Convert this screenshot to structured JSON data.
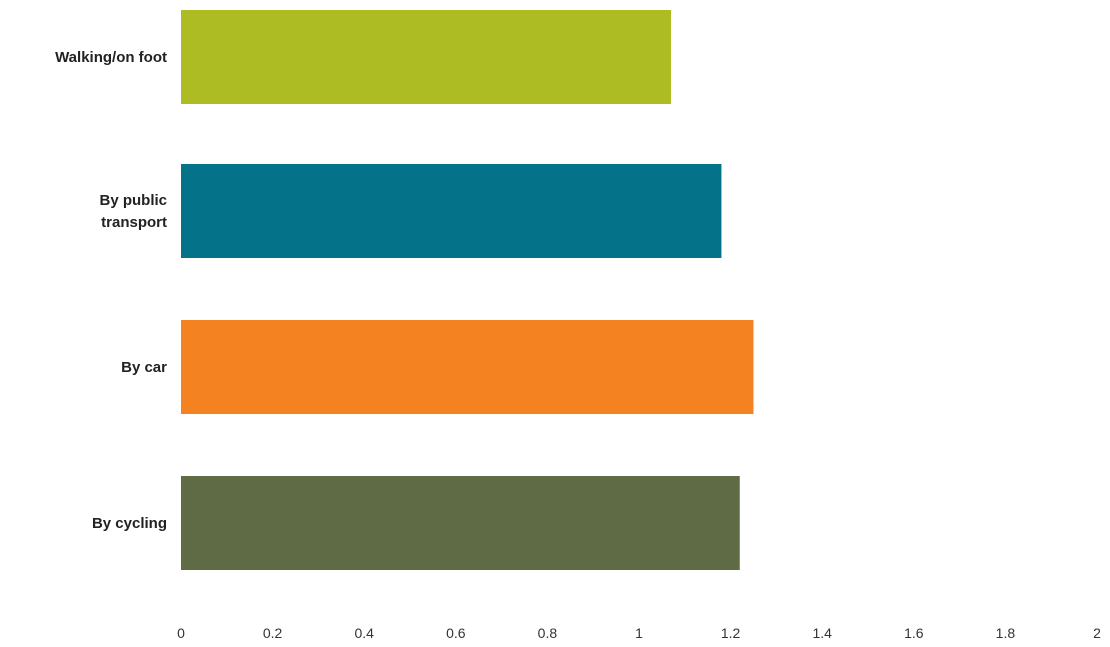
{
  "chart_data": {
    "type": "bar",
    "orientation": "horizontal",
    "categories": [
      "Walking/on foot",
      "By public transport",
      "By car",
      "By cycling"
    ],
    "category_label_lines": [
      [
        "Walking/on foot"
      ],
      [
        "By public",
        "transport"
      ],
      [
        "By car"
      ],
      [
        "By cycling"
      ]
    ],
    "values": [
      1.07,
      1.18,
      1.25,
      1.22
    ],
    "colors": [
      "#aebc23",
      "#04738a",
      "#f58220",
      "#5f6b45"
    ],
    "xlim": [
      0,
      2
    ],
    "x_ticks": [
      0,
      0.2,
      0.4,
      0.6,
      0.8,
      1,
      1.2,
      1.4,
      1.6,
      1.8,
      2
    ],
    "x_tick_labels": [
      "0",
      "0.2",
      "0.4",
      "0.6",
      "0.8",
      "1",
      "1.2",
      "1.4",
      "1.6",
      "1.8",
      "2"
    ],
    "grid": false,
    "legend": "none"
  }
}
